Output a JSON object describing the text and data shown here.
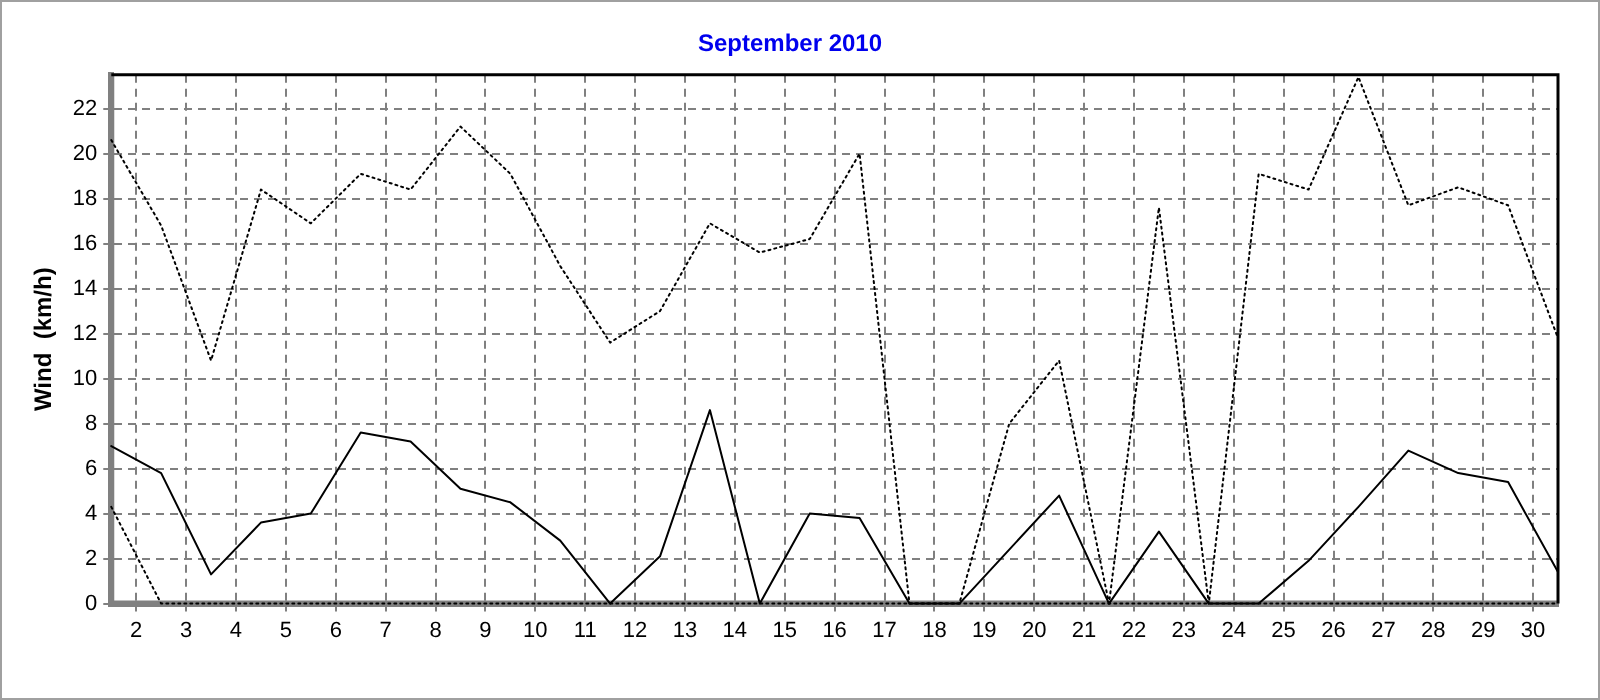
{
  "chart_data": {
    "type": "line",
    "title": "September 2010",
    "ylabel": "Wind  (km/h)",
    "x": [
      1.5,
      2.5,
      3.5,
      4.5,
      5.5,
      6.5,
      7.5,
      8.5,
      9.5,
      10.5,
      11.5,
      12.5,
      13.5,
      14.5,
      15.5,
      16.5,
      17.5,
      18.5,
      19.5,
      20.5,
      21.5,
      22.5,
      23.5,
      24.5,
      25.5,
      26.5,
      27.5,
      28.5,
      29.5,
      30.5
    ],
    "series": [
      {
        "color": "#000000",
        "line_style": "solid",
        "values": [
          7.0,
          5.8,
          1.3,
          3.6,
          4.0,
          7.6,
          7.2,
          5.1,
          4.5,
          2.8,
          0,
          2.1,
          8.6,
          0,
          4.0,
          3.8,
          0,
          0,
          2.4,
          4.8,
          0,
          3.2,
          0,
          0,
          1.9,
          4.3,
          6.8,
          5.8,
          5.4,
          1.4
        ]
      },
      {
        "color": "#000000",
        "line_style": "dotted",
        "values": [
          20.6,
          16.8,
          10.8,
          18.4,
          16.9,
          19.1,
          18.4,
          21.2,
          19.1,
          15.0,
          11.6,
          13.0,
          16.9,
          15.6,
          16.2,
          20.0,
          0,
          0,
          8.0,
          10.8,
          0,
          17.6,
          0,
          19.1,
          18.4,
          23.4,
          17.7,
          18.5,
          17.7,
          11.8
        ]
      },
      {
        "color": "#000000",
        "line_style": "dotted",
        "values": [
          4.3,
          0,
          0,
          0,
          0,
          0,
          0,
          0,
          0,
          0,
          0,
          0,
          0,
          0,
          0,
          0,
          0,
          0,
          0,
          0,
          0,
          0,
          0,
          0,
          0,
          0,
          0,
          0,
          0,
          0
        ]
      }
    ],
    "xlim": [
      1.5,
      30.5
    ],
    "xticks": [
      2,
      3,
      4,
      5,
      6,
      7,
      8,
      9,
      10,
      11,
      12,
      13,
      14,
      15,
      16,
      17,
      18,
      19,
      20,
      21,
      22,
      23,
      24,
      25,
      26,
      27,
      28,
      29,
      30
    ],
    "ylim": [
      0,
      23.5
    ],
    "yticks": [
      0,
      2,
      4,
      6,
      8,
      10,
      12,
      14,
      16,
      18,
      20,
      22
    ],
    "grid": true,
    "legend": false,
    "marker": "none"
  }
}
